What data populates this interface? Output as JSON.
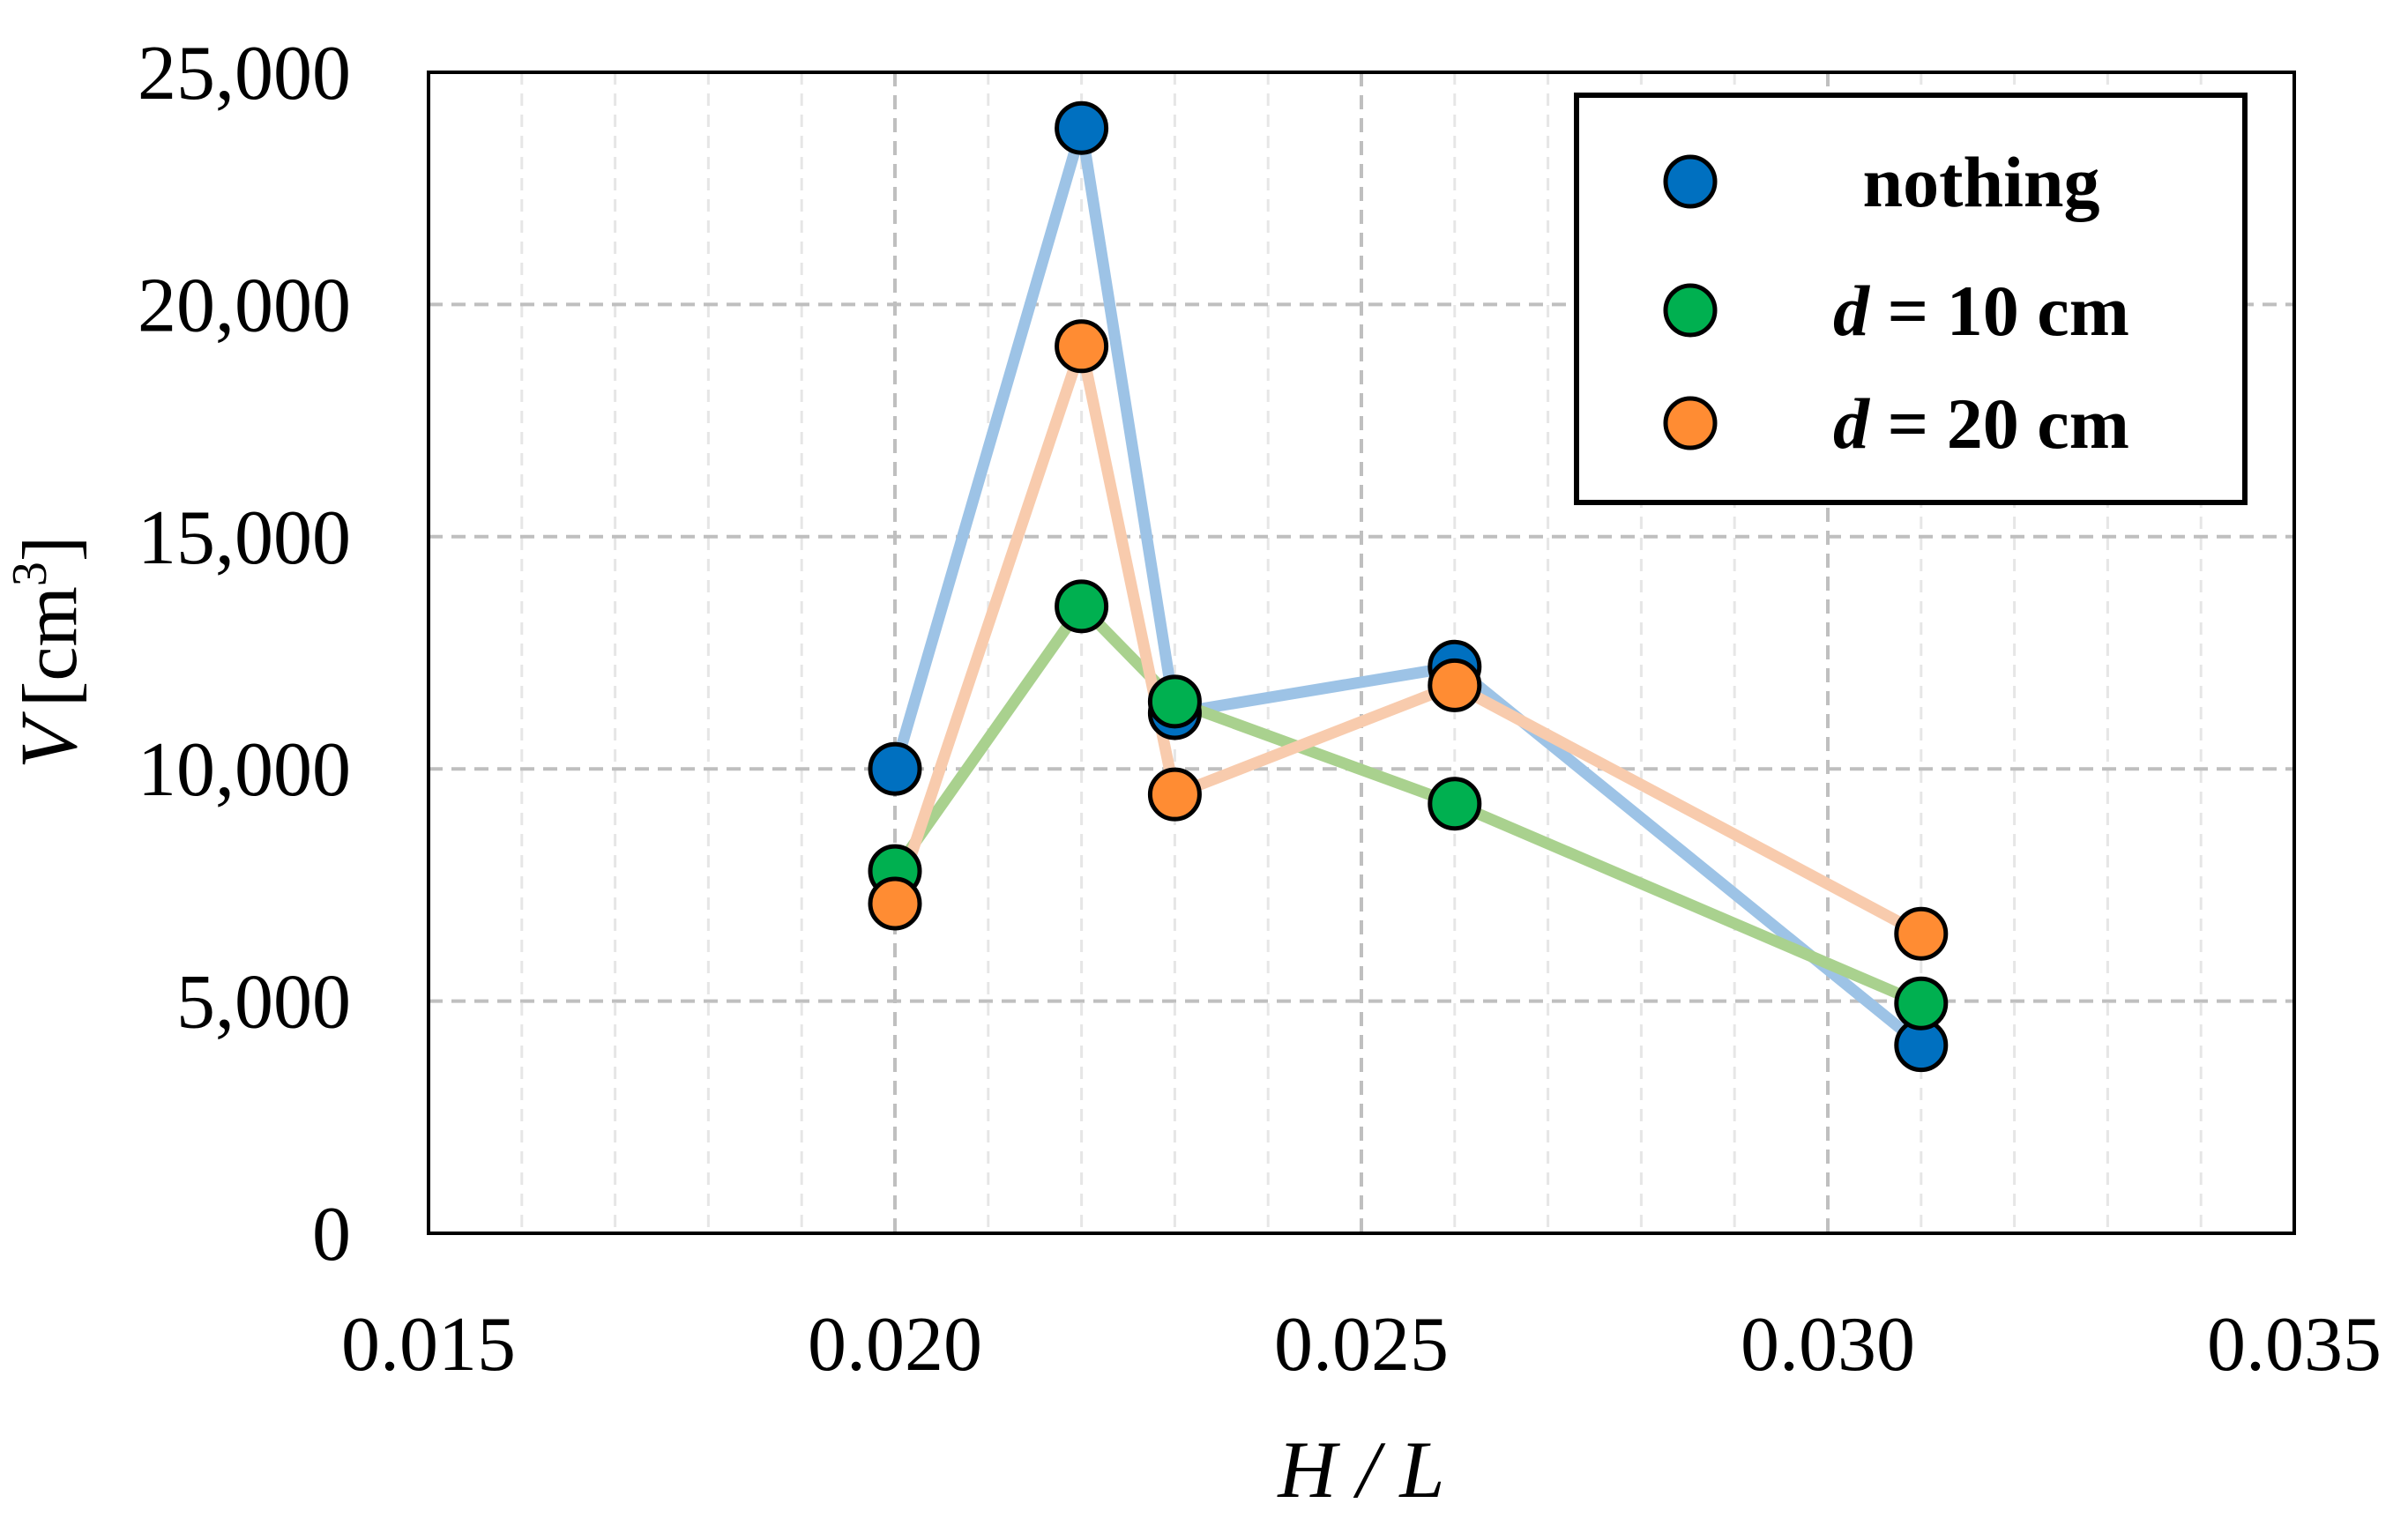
{
  "chart_data": {
    "type": "line",
    "title": "",
    "xlabel": "H / L",
    "ylabel_main": "V",
    "ylabel_unit": "[cm",
    "ylabel_sup": "3",
    "ylabel_close": "]",
    "xlim": [
      0.015,
      0.035
    ],
    "ylim": [
      0,
      25000
    ],
    "x_major_step": 0.005,
    "x_minor_step": 0.001,
    "y_major_step": 5000,
    "grid": true,
    "legend_position": "top-right",
    "x_tick_labels": [
      "0.015",
      "0.020",
      "0.025",
      "0.030",
      "0.035"
    ],
    "y_tick_labels": [
      "0",
      "5,000",
      "10,000",
      "15,000",
      "20,000",
      "25,000"
    ],
    "x": [
      0.02,
      0.022,
      0.023,
      0.026,
      0.031
    ],
    "series": [
      {
        "name": "nothing",
        "legend_var": "",
        "legend_rest": "nothing",
        "values": [
          10000,
          23800,
          11200,
          12200,
          4050
        ],
        "line_color": "#9dc3e6",
        "marker_color": "#0070c0"
      },
      {
        "name": "d = 10 cm",
        "legend_var": "d",
        "legend_rest": " = 10 cm",
        "values": [
          7800,
          13500,
          11450,
          9250,
          4950
        ],
        "line_color": "#a9d18e",
        "marker_color": "#00b050"
      },
      {
        "name": "d = 20 cm",
        "legend_var": "d",
        "legend_rest": " = 20 cm",
        "values": [
          7100,
          19100,
          9450,
          11800,
          6450
        ],
        "line_color": "#f8cbad",
        "marker_color": "#ff8c33"
      }
    ]
  }
}
